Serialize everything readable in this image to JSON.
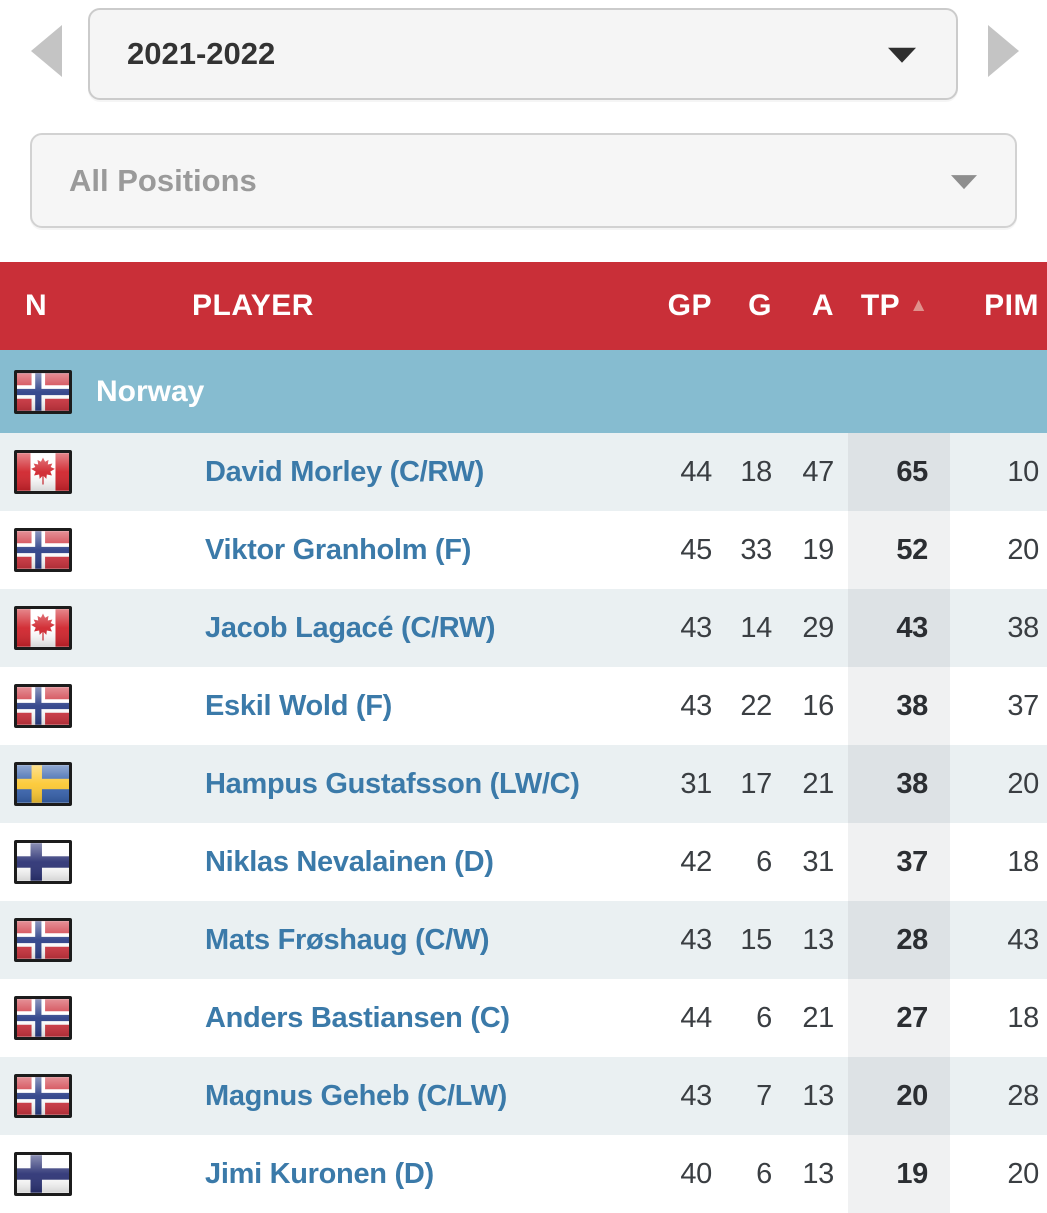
{
  "season_selector": {
    "value": "2021-2022"
  },
  "position_filter": {
    "value": "All Positions"
  },
  "table": {
    "columns": [
      {
        "key": "n",
        "label": "N"
      },
      {
        "key": "player",
        "label": "PLAYER"
      },
      {
        "key": "gp",
        "label": "GP"
      },
      {
        "key": "g",
        "label": "G"
      },
      {
        "key": "a",
        "label": "A"
      },
      {
        "key": "tp",
        "label": "TP",
        "sorted": "asc"
      },
      {
        "key": "pim",
        "label": "PIM"
      }
    ],
    "group": {
      "label": "Norway",
      "nationality": "norway"
    },
    "rows": [
      {
        "nationality": "canada",
        "name": "David Morley (C/RW)",
        "gp": 44,
        "g": 18,
        "a": 47,
        "tp": 65,
        "pim": 10
      },
      {
        "nationality": "norway",
        "name": "Viktor Granholm (F)",
        "gp": 45,
        "g": 33,
        "a": 19,
        "tp": 52,
        "pim": 20
      },
      {
        "nationality": "canada",
        "name": "Jacob Lagacé (C/RW)",
        "gp": 43,
        "g": 14,
        "a": 29,
        "tp": 43,
        "pim": 38
      },
      {
        "nationality": "norway",
        "name": "Eskil Wold (F)",
        "gp": 43,
        "g": 22,
        "a": 16,
        "tp": 38,
        "pim": 37
      },
      {
        "nationality": "sweden",
        "name": "Hampus Gustafsson (LW/C)",
        "gp": 31,
        "g": 17,
        "a": 21,
        "tp": 38,
        "pim": 20
      },
      {
        "nationality": "finland",
        "name": "Niklas Nevalainen (D)",
        "gp": 42,
        "g": 6,
        "a": 31,
        "tp": 37,
        "pim": 18
      },
      {
        "nationality": "norway",
        "name": "Mats Frøshaug (C/W)",
        "gp": 43,
        "g": 15,
        "a": 13,
        "tp": 28,
        "pim": 43
      },
      {
        "nationality": "norway",
        "name": "Anders Bastiansen (C)",
        "gp": 44,
        "g": 6,
        "a": 21,
        "tp": 27,
        "pim": 18
      },
      {
        "nationality": "norway",
        "name": "Magnus Geheb (C/LW)",
        "gp": 43,
        "g": 7,
        "a": 13,
        "tp": 20,
        "pim": 28
      },
      {
        "nationality": "finland",
        "name": "Jimi Kuronen (D)",
        "gp": 40,
        "g": 6,
        "a": 13,
        "tp": 19,
        "pim": 20
      }
    ]
  },
  "colors": {
    "header_red": "#c92f38",
    "sort_arrow": "#df918c",
    "group_blue": "#86bcd0",
    "row_alt": "#eaf0f2",
    "tp_strip": "#f0f1f2",
    "tp_strip_alt": "#dde2e5",
    "link_blue": "#3b7aa9"
  }
}
